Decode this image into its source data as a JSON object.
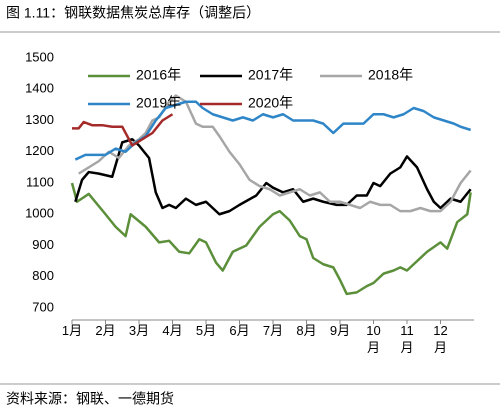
{
  "chart_data": {
    "type": "line",
    "title": "图 1.11：钢联数据焦炭总库存（调整后）",
    "source": "资料来源：钢联、一德期货",
    "xlim": [
      1,
      13
    ],
    "xticks": [
      {
        "value": 1,
        "label": "1月"
      },
      {
        "value": 2,
        "label": "2月"
      },
      {
        "value": 3,
        "label": "3月"
      },
      {
        "value": 4,
        "label": "4月"
      },
      {
        "value": 5,
        "label": "5月"
      },
      {
        "value": 6,
        "label": "6月"
      },
      {
        "value": 7,
        "label": "7月"
      },
      {
        "value": 8,
        "label": "8月"
      },
      {
        "value": 9,
        "label": "9月"
      },
      {
        "value": 10,
        "label": "10\n月"
      },
      {
        "value": 11,
        "label": "11\n月"
      },
      {
        "value": 12,
        "label": "12\n月"
      }
    ],
    "ylim": [
      700,
      1500
    ],
    "yticks": [
      700,
      800,
      900,
      1000,
      1100,
      1200,
      1300,
      1400,
      1500
    ],
    "grid": false,
    "series": [
      {
        "name": "2016年",
        "color": "#5b8f3a",
        "x": [
          1.0,
          1.15,
          1.5,
          2.0,
          2.3,
          2.6,
          2.75,
          3.2,
          3.6,
          3.9,
          4.2,
          4.5,
          4.8,
          5.0,
          5.3,
          5.5,
          5.8,
          6.2,
          6.6,
          7.0,
          7.2,
          7.5,
          7.8,
          8.0,
          8.2,
          8.5,
          8.8,
          9.0,
          9.2,
          9.5,
          9.8,
          10.0,
          10.3,
          10.6,
          10.8,
          11.0,
          11.3,
          11.6,
          12.0,
          12.2,
          12.5,
          12.8,
          12.9
        ],
        "values": [
          1100,
          1040,
          1065,
          1000,
          960,
          930,
          1000,
          960,
          910,
          915,
          880,
          875,
          920,
          910,
          845,
          820,
          880,
          900,
          960,
          1000,
          1010,
          980,
          930,
          920,
          860,
          840,
          830,
          790,
          745,
          750,
          770,
          780,
          810,
          820,
          830,
          820,
          850,
          880,
          910,
          890,
          975,
          1000,
          1070
        ]
      },
      {
        "name": "2017年",
        "color": "#000000",
        "x": [
          1.1,
          1.3,
          1.5,
          1.8,
          2.2,
          2.5,
          2.8,
          3.0,
          3.3,
          3.5,
          3.7,
          3.9,
          4.1,
          4.4,
          4.7,
          5.0,
          5.4,
          5.7,
          6.0,
          6.5,
          6.8,
          7.0,
          7.3,
          7.6,
          7.9,
          8.2,
          8.5,
          8.9,
          9.2,
          9.5,
          9.8,
          10.0,
          10.2,
          10.5,
          10.8,
          11.0,
          11.3,
          11.6,
          11.8,
          12.0,
          12.3,
          12.6,
          12.9
        ],
        "values": [
          1040,
          1110,
          1135,
          1130,
          1120,
          1230,
          1240,
          1220,
          1180,
          1070,
          1020,
          1030,
          1020,
          1050,
          1030,
          1040,
          1000,
          1010,
          1030,
          1060,
          1100,
          1085,
          1070,
          1080,
          1040,
          1050,
          1040,
          1030,
          1030,
          1060,
          1060,
          1100,
          1090,
          1130,
          1150,
          1185,
          1150,
          1080,
          1040,
          1020,
          1050,
          1040,
          1080
        ]
      },
      {
        "name": "2018年",
        "color": "#a6a6a6",
        "x": [
          1.2,
          1.5,
          1.8,
          2.1,
          2.4,
          2.7,
          3.0,
          3.2,
          3.4,
          3.6,
          3.9,
          4.1,
          4.4,
          4.7,
          4.9,
          5.2,
          5.4,
          5.7,
          6.0,
          6.3,
          6.6,
          6.9,
          7.2,
          7.5,
          7.8,
          8.1,
          8.4,
          8.7,
          9.0,
          9.3,
          9.6,
          9.9,
          10.2,
          10.5,
          10.8,
          11.1,
          11.4,
          11.7,
          12.0,
          12.3,
          12.6,
          12.9
        ],
        "values": [
          1130,
          1150,
          1170,
          1200,
          1180,
          1220,
          1240,
          1260,
          1300,
          1310,
          1360,
          1380,
          1360,
          1290,
          1280,
          1280,
          1250,
          1200,
          1160,
          1110,
          1090,
          1080,
          1060,
          1070,
          1080,
          1060,
          1070,
          1040,
          1040,
          1030,
          1020,
          1040,
          1030,
          1030,
          1010,
          1010,
          1020,
          1010,
          1010,
          1040,
          1100,
          1140
        ]
      },
      {
        "name": "2019年",
        "color": "#2e86c8",
        "x": [
          1.1,
          1.4,
          1.7,
          2.0,
          2.3,
          2.6,
          2.9,
          3.2,
          3.5,
          3.8,
          4.1,
          4.4,
          4.7,
          4.9,
          5.2,
          5.5,
          5.8,
          6.1,
          6.4,
          6.7,
          7.0,
          7.3,
          7.6,
          7.9,
          8.2,
          8.5,
          8.8,
          9.1,
          9.4,
          9.7,
          10.0,
          10.3,
          10.6,
          10.9,
          11.2,
          11.5,
          11.8,
          12.1,
          12.4,
          12.6,
          12.9
        ],
        "values": [
          1175,
          1190,
          1190,
          1190,
          1210,
          1200,
          1230,
          1250,
          1300,
          1340,
          1350,
          1360,
          1360,
          1340,
          1320,
          1310,
          1300,
          1310,
          1300,
          1320,
          1310,
          1320,
          1300,
          1300,
          1300,
          1290,
          1260,
          1290,
          1290,
          1290,
          1320,
          1320,
          1310,
          1320,
          1340,
          1330,
          1310,
          1300,
          1290,
          1280,
          1270
        ]
      },
      {
        "name": "2020年",
        "color": "#a52a2a",
        "x": [
          1.0,
          1.2,
          1.35,
          1.6,
          1.9,
          2.2,
          2.5,
          2.8,
          3.1,
          3.4,
          3.7,
          4.0
        ],
        "values": [
          1275,
          1275,
          1295,
          1285,
          1285,
          1280,
          1280,
          1220,
          1240,
          1260,
          1300,
          1320
        ]
      }
    ]
  }
}
